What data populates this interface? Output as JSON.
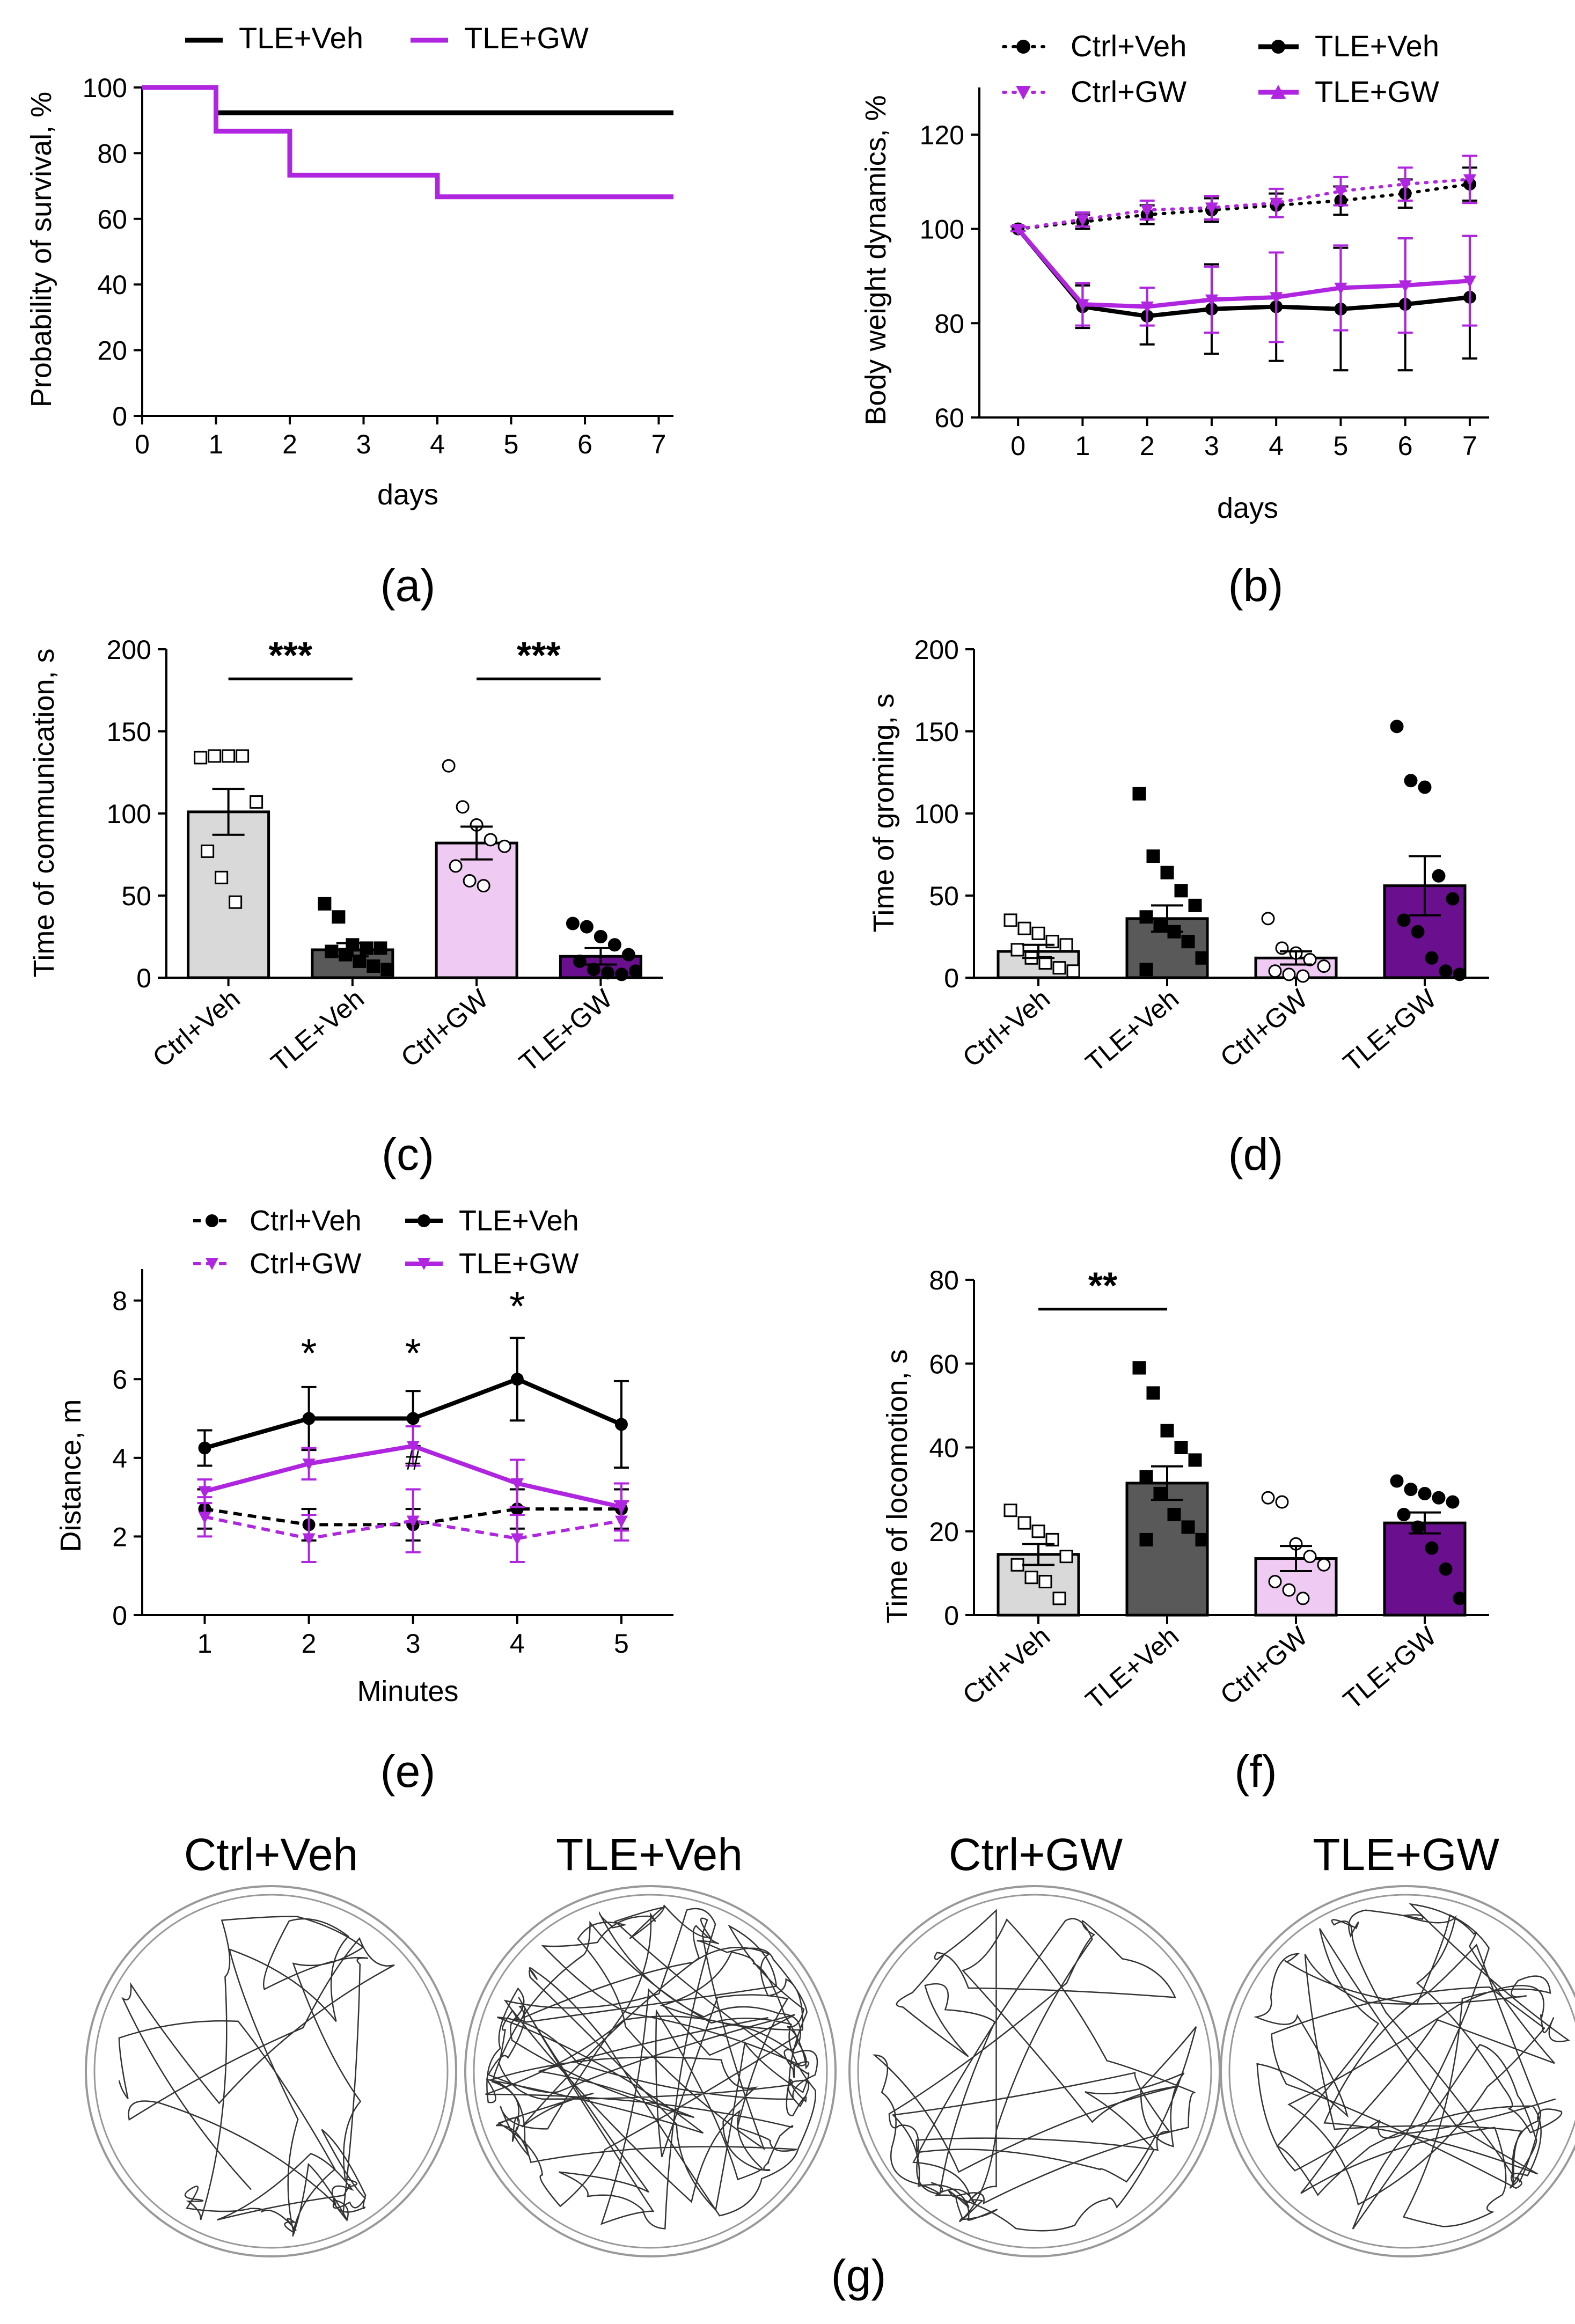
{
  "figure": {
    "colors": {
      "ink": "#000000",
      "purple": "#b026e0",
      "sig_red": "#ff0000",
      "ctrl_veh_fill": "#d9d9d9",
      "tle_veh_fill": "#595959",
      "ctrl_gw_fill": "#efcbf3",
      "tle_gw_fill": "#6a0f8e",
      "arena_line": "#999999",
      "track": "#333333"
    },
    "panel_labels": {
      "a": "(a)",
      "b": "(b)",
      "c": "(c)",
      "d": "(d)",
      "e": "(e)",
      "f": "(f)",
      "g": "(g)"
    }
  },
  "chart_data": [
    {
      "id": "a",
      "type": "line",
      "subtype": "survival-step",
      "xlabel": "days",
      "ylabel": "Probability of survival, %",
      "xlim": [
        0,
        7.2
      ],
      "ylim": [
        0,
        100
      ],
      "xticks": [
        0,
        1,
        2,
        3,
        4,
        5,
        6,
        7
      ],
      "yticks": [
        0,
        20,
        40,
        60,
        80,
        100
      ],
      "legend": [
        "TLE+Veh",
        "TLE+GW"
      ],
      "series": [
        {
          "name": "TLE+Veh",
          "color": "#000000",
          "points": [
            [
              0,
              100
            ],
            [
              1,
              100
            ],
            [
              1,
              92.3
            ],
            [
              7.2,
              92.3
            ]
          ]
        },
        {
          "name": "TLE+GW",
          "color": "#b026e0",
          "points": [
            [
              0,
              100
            ],
            [
              1,
              100
            ],
            [
              1,
              86.7
            ],
            [
              2,
              86.7
            ],
            [
              2,
              73.3
            ],
            [
              4,
              73.3
            ],
            [
              4,
              66.7
            ],
            [
              7.2,
              66.7
            ]
          ]
        }
      ]
    },
    {
      "id": "b",
      "type": "line",
      "xlabel": "days",
      "ylabel": "Body weight dynamics, %",
      "xlim": [
        -0.6,
        7.3
      ],
      "ylim": [
        60,
        130
      ],
      "xticks": [
        0,
        1,
        2,
        3,
        4,
        5,
        6,
        7
      ],
      "yticks": [
        60,
        80,
        100,
        120
      ],
      "legend": [
        "Ctrl+Veh",
        "TLE+Veh",
        "Ctrl+GW",
        "TLE+GW"
      ],
      "series": [
        {
          "name": "Ctrl+Veh",
          "color": "#000000",
          "style": "dotted",
          "marker": "circle",
          "x": [
            0,
            1,
            2,
            3,
            4,
            5,
            6,
            7
          ],
          "y": [
            100,
            101.5,
            103,
            104,
            105,
            106,
            107.5,
            109.5
          ],
          "err": [
            0.5,
            1.5,
            2,
            2.5,
            2.5,
            3,
            3,
            3.5
          ]
        },
        {
          "name": "Ctrl+GW",
          "color": "#b026e0",
          "style": "dotted",
          "marker": "triangle",
          "x": [
            0,
            1,
            2,
            3,
            4,
            5,
            6,
            7
          ],
          "y": [
            100,
            102,
            104,
            104.5,
            105.5,
            108,
            109.5,
            110.5
          ],
          "err": [
            0.5,
            1.5,
            2,
            2.5,
            3,
            3,
            3.5,
            5
          ]
        },
        {
          "name": "TLE+Veh",
          "color": "#000000",
          "style": "solid",
          "marker": "circle",
          "x": [
            0,
            1,
            2,
            3,
            4,
            5,
            6,
            7
          ],
          "y": [
            100,
            83.5,
            81.5,
            83,
            83.5,
            83,
            84,
            85.5
          ],
          "err": [
            0.5,
            4.5,
            6,
            9.5,
            11.5,
            13,
            14,
            13
          ]
        },
        {
          "name": "TLE+GW",
          "color": "#b026e0",
          "style": "solid",
          "marker": "triangle",
          "x": [
            0,
            1,
            2,
            3,
            4,
            5,
            6,
            7
          ],
          "y": [
            100,
            84,
            83.5,
            85,
            85.5,
            87.5,
            88,
            89
          ],
          "err": [
            0.5,
            4.5,
            4,
            7,
            9.5,
            9,
            10,
            9.5
          ]
        }
      ]
    },
    {
      "id": "c",
      "type": "bar",
      "ylabel": "Time of communication, s",
      "ylim": [
        0,
        200
      ],
      "yticks": [
        0,
        50,
        100,
        150,
        200
      ],
      "categories": [
        "Ctrl+Veh",
        "TLE+Veh",
        "Ctrl+GW",
        "TLE+GW"
      ],
      "values": [
        101,
        17,
        82,
        13
      ],
      "errors": [
        14,
        4,
        10,
        5
      ],
      "markers": [
        "square-open",
        "square",
        "circle-open",
        "circle"
      ],
      "points": [
        [
          134,
          135,
          135,
          135,
          107,
          77,
          61,
          46
        ],
        [
          45,
          37,
          20,
          18,
          18,
          16,
          14,
          10,
          7,
          5
        ],
        [
          129,
          104,
          93,
          84,
          80,
          68,
          59,
          56
        ],
        [
          33,
          31,
          25,
          20,
          14,
          10,
          5,
          3,
          2,
          4
        ]
      ],
      "significance": [
        {
          "from": 0,
          "to": 1,
          "label": "***",
          "y": 182
        },
        {
          "from": 2,
          "to": 3,
          "label": "***",
          "y": 182
        }
      ]
    },
    {
      "id": "d",
      "type": "bar",
      "ylabel": "Time of groming, s",
      "ylim": [
        0,
        200
      ],
      "yticks": [
        0,
        50,
        100,
        150,
        200
      ],
      "categories": [
        "Ctrl+Veh",
        "TLE+Veh",
        "Ctrl+GW",
        "TLE+GW"
      ],
      "values": [
        16,
        36,
        12,
        56
      ],
      "errors": [
        4,
        8,
        4,
        18
      ],
      "markers": [
        "square-open",
        "square",
        "circle-open",
        "circle"
      ],
      "points": [
        [
          35,
          30,
          27,
          22,
          20,
          17,
          12,
          9,
          6,
          4
        ],
        [
          112,
          74,
          64,
          53,
          44,
          37,
          32,
          28,
          22,
          12,
          5
        ],
        [
          36,
          18,
          15,
          11,
          7,
          4,
          2,
          1
        ],
        [
          153,
          120,
          116,
          62,
          48,
          35,
          28,
          12,
          4,
          2
        ]
      ]
    },
    {
      "id": "e",
      "type": "line",
      "xlabel": "Minutes",
      "ylabel": "Distance, m",
      "xlim": [
        0.4,
        5.5
      ],
      "ylim": [
        0,
        8.8
      ],
      "xticks": [
        1,
        2,
        3,
        4,
        5
      ],
      "yticks": [
        0,
        2,
        4,
        6,
        8
      ],
      "legend": [
        "Ctrl+Veh",
        "TLE+Veh",
        "Ctrl+GW",
        "TLE+GW"
      ],
      "series": [
        {
          "name": "Ctrl+Veh",
          "color": "#000000",
          "style": "dashed",
          "marker": "circle",
          "x": [
            1,
            2,
            3,
            4,
            5
          ],
          "y": [
            2.7,
            2.3,
            2.3,
            2.7,
            2.7
          ],
          "err": [
            0.5,
            0.4,
            0.4,
            0.5,
            0.5
          ]
        },
        {
          "name": "TLE+Veh",
          "color": "#000000",
          "style": "solid",
          "marker": "circle",
          "x": [
            1,
            2,
            3,
            4,
            5
          ],
          "y": [
            4.25,
            5.0,
            5.0,
            6.0,
            4.85
          ],
          "err": [
            0.45,
            0.8,
            0.7,
            1.05,
            1.1
          ]
        },
        {
          "name": "Ctrl+GW",
          "color": "#b026e0",
          "style": "dashed",
          "marker": "triangle",
          "x": [
            1,
            2,
            3,
            4,
            5
          ],
          "y": [
            2.5,
            1.95,
            2.4,
            1.95,
            2.4
          ],
          "err": [
            0.5,
            0.6,
            0.8,
            0.6,
            0.5
          ]
        },
        {
          "name": "TLE+GW",
          "color": "#b026e0",
          "style": "solid",
          "marker": "triangle",
          "x": [
            1,
            2,
            3,
            4,
            5
          ],
          "y": [
            3.15,
            3.85,
            4.3,
            3.35,
            2.75
          ],
          "err": [
            0.3,
            0.4,
            0.5,
            0.6,
            0.6
          ]
        }
      ],
      "annotations": [
        {
          "label": "*",
          "x": 2,
          "y": 6.3,
          "color": "#ff0000"
        },
        {
          "label": "*",
          "x": 3,
          "y": 6.3,
          "color": "#ff0000"
        },
        {
          "label": "*",
          "x": 4,
          "y": 7.5,
          "color": "#ff0000"
        },
        {
          "label": "#",
          "x": 3,
          "y": 3.7,
          "color": "#b026e0"
        }
      ]
    },
    {
      "id": "f",
      "type": "bar",
      "ylabel": "Time of locomotion, s",
      "ylim": [
        0,
        80
      ],
      "yticks": [
        0,
        20,
        40,
        60,
        80
      ],
      "categories": [
        "Ctrl+Veh",
        "TLE+Veh",
        "Ctrl+GW",
        "TLE+GW"
      ],
      "values": [
        14.5,
        31.5,
        13.5,
        22
      ],
      "errors": [
        2.5,
        4,
        3,
        2.5
      ],
      "markers": [
        "square-open",
        "square",
        "circle-open",
        "circle"
      ],
      "points": [
        [
          25,
          22,
          20,
          18,
          14,
          12,
          9,
          8,
          4
        ],
        [
          59,
          53,
          44,
          40,
          37,
          33,
          29,
          24,
          21,
          18,
          18
        ],
        [
          28,
          27,
          17,
          14,
          12,
          8,
          6,
          4
        ],
        [
          32,
          30,
          29,
          28,
          27,
          24,
          21,
          16,
          11,
          4
        ]
      ],
      "significance": [
        {
          "from": 0,
          "to": 1,
          "label": "**",
          "y": 73
        }
      ]
    }
  ],
  "arenas": {
    "titles": [
      "Ctrl+Veh",
      "TLE+Veh",
      "Ctrl+GW",
      "TLE+GW"
    ]
  }
}
